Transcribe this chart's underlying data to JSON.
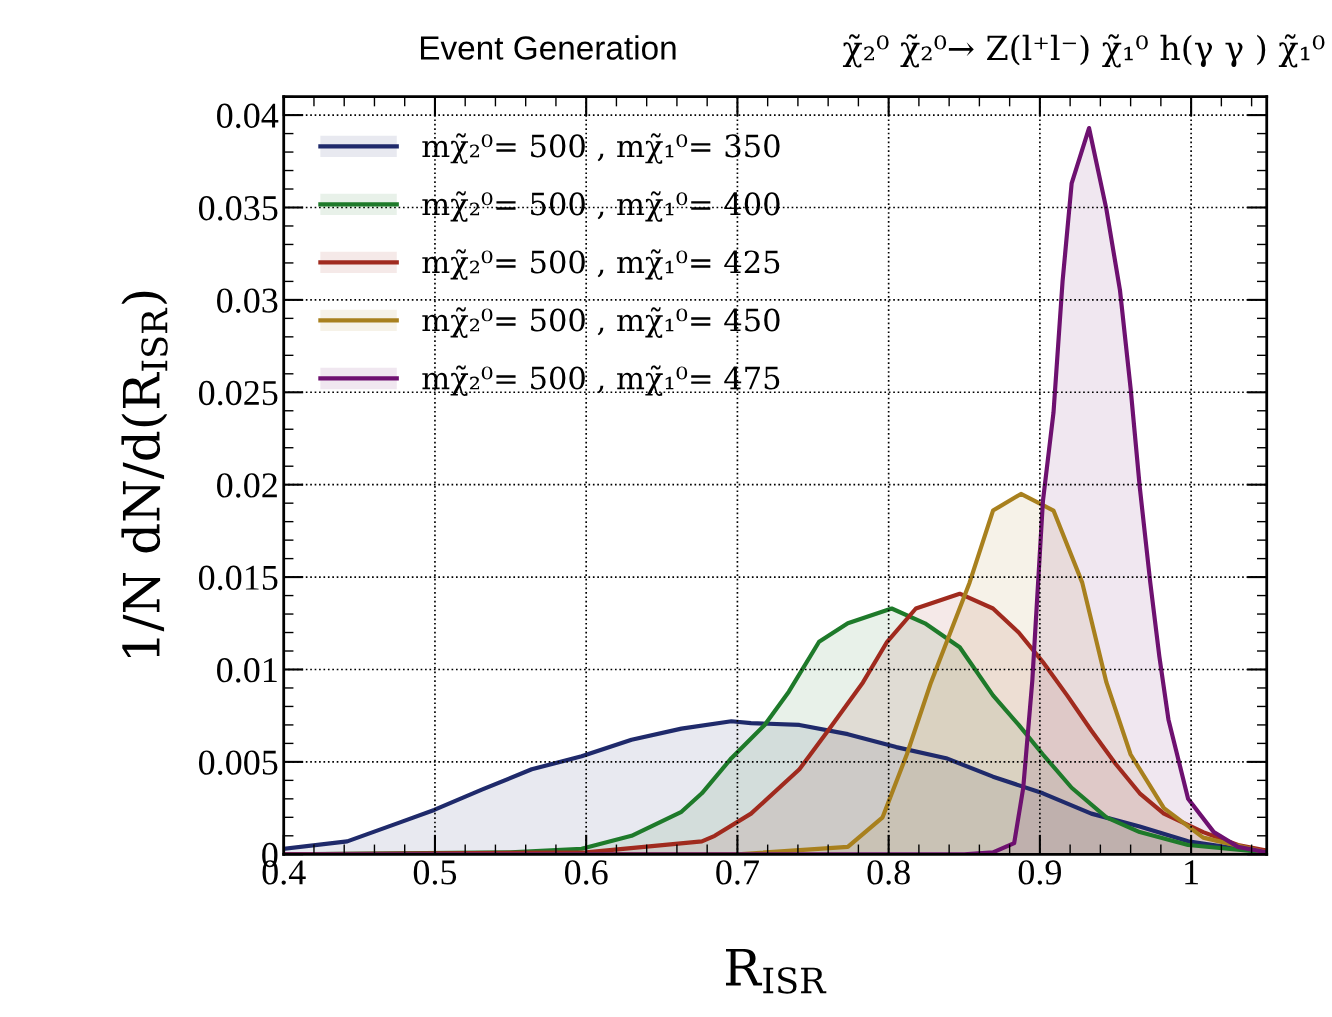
{
  "chart_data": {
    "type": "area",
    "title": "Event Generation",
    "subtitle": "χ̃₂⁰ χ̃₂⁰→ Z(l⁺l⁻) χ̃₁⁰ h(γ γ ) χ̃₁⁰",
    "xlabel": "R$_{ISR}$",
    "ylabel": "1/N dN/d(R$_{ISR}$)",
    "xlim": [
      0.4,
      1.05
    ],
    "ylim": [
      0,
      0.041
    ],
    "xticks": [
      0.4,
      0.5,
      0.6,
      0.7,
      0.8,
      0.9,
      1
    ],
    "yticks": [
      0,
      0.005,
      0.01,
      0.015,
      0.02,
      0.025,
      0.03,
      0.035,
      0.04
    ],
    "grid": true,
    "legend": "top left",
    "line_style": "solid",
    "marker": "none",
    "series": [
      {
        "name": "mχ̃₂⁰= 500 , mχ̃₁⁰= 350",
        "color": "#1f2a6b",
        "x": [
          0.4,
          0.442,
          0.476,
          0.4995,
          0.531,
          0.564,
          0.597,
          0.63,
          0.663,
          0.696,
          0.709,
          0.741,
          0.773,
          0.805,
          0.838,
          0.869,
          0.902,
          0.934,
          0.966,
          0.998,
          1.031,
          1.05
        ],
        "values": [
          0.0003,
          0.0007,
          0.0017,
          0.0024,
          0.0035,
          0.0046,
          0.0053,
          0.0062,
          0.0068,
          0.0072,
          0.0071,
          0.007,
          0.0065,
          0.0058,
          0.0052,
          0.0042,
          0.0033,
          0.0022,
          0.0015,
          0.0007,
          0.0003,
          0.0001
        ]
      },
      {
        "name": "mχ̃₂⁰= 500 , mχ̃₁⁰= 400",
        "color": "#1e7a2a",
        "x": [
          0.4,
          0.55,
          0.597,
          0.63,
          0.663,
          0.6765,
          0.696,
          0.718,
          0.734,
          0.754,
          0.773,
          0.802,
          0.824,
          0.847,
          0.869,
          0.886,
          0.902,
          0.921,
          0.944,
          0.966,
          0.998,
          1.05
        ],
        "values": [
          0,
          0.0001,
          0.0003,
          0.001,
          0.0023,
          0.0033,
          0.0052,
          0.007,
          0.0088,
          0.0115,
          0.0125,
          0.0133,
          0.0125,
          0.0112,
          0.0086,
          0.007,
          0.0054,
          0.0036,
          0.002,
          0.0012,
          0.0005,
          0.0001
        ]
      },
      {
        "name": "mχ̃₂⁰= 500 , mχ̃₁⁰= 425",
        "color": "#a02a1e",
        "x": [
          0.4,
          0.6,
          0.6765,
          0.685,
          0.709,
          0.741,
          0.76,
          0.783,
          0.799,
          0.818,
          0.847,
          0.869,
          0.886,
          0.902,
          0.918,
          0.934,
          0.95,
          0.966,
          0.982,
          1.008,
          1.031,
          1.05
        ],
        "values": [
          0,
          0.0001,
          0.0007,
          0.001,
          0.0022,
          0.0046,
          0.0067,
          0.0093,
          0.0115,
          0.0133,
          0.0141,
          0.0133,
          0.012,
          0.0104,
          0.0086,
          0.0067,
          0.0049,
          0.0033,
          0.0022,
          0.0012,
          0.0005,
          0.0002
        ]
      },
      {
        "name": "mχ̃₂⁰= 500 , mχ̃₁⁰= 450",
        "color": "#a8801e",
        "x": [
          0.4,
          0.7,
          0.773,
          0.796,
          0.812,
          0.828,
          0.8535,
          0.869,
          0.8875,
          0.909,
          0.928,
          0.944,
          0.96,
          0.982,
          1.008,
          1.05
        ],
        "values": [
          0,
          0,
          0.0004,
          0.002,
          0.0054,
          0.0093,
          0.0147,
          0.0186,
          0.0195,
          0.0186,
          0.0147,
          0.0093,
          0.0054,
          0.0025,
          0.0009,
          0.0001
        ]
      },
      {
        "name": "mχ̃₂⁰= 500 , mχ̃₁⁰= 475",
        "color": "#6e1170",
        "x": [
          0.4,
          0.85,
          0.869,
          0.883,
          0.889,
          0.895,
          0.902,
          0.909,
          0.915,
          0.921,
          0.9325,
          0.944,
          0.953,
          0.96,
          0.966,
          0.973,
          0.979,
          0.985,
          0.998,
          1.015,
          1.031,
          1.05
        ],
        "values": [
          0,
          0,
          0.0001,
          0.0006,
          0.0036,
          0.0094,
          0.0191,
          0.0239,
          0.031,
          0.0363,
          0.0393,
          0.0349,
          0.0305,
          0.0252,
          0.0199,
          0.0147,
          0.0107,
          0.0073,
          0.003,
          0.0012,
          0.0004,
          0.0001
        ]
      }
    ]
  }
}
